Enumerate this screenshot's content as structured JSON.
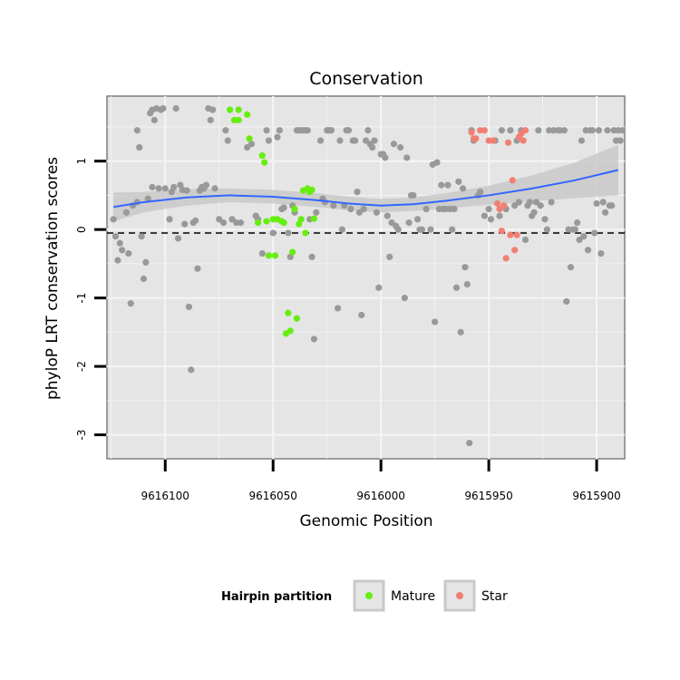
{
  "chart_data": {
    "type": "scatter",
    "title": "Conservation",
    "xlabel": "Genomic Position",
    "ylabel": "phyloP LRT conservation scores",
    "x_reversed": true,
    "xlim": [
      9616127,
      9615887
    ],
    "ylim": [
      -3.35,
      1.95
    ],
    "x_ticks": [
      9616100,
      9616050,
      9616000,
      9615950,
      9615900
    ],
    "y_ticks": [
      -3,
      -2,
      -1,
      0,
      1
    ],
    "grid": true,
    "reference_line": {
      "y": 0,
      "style": "dashed"
    },
    "legend": {
      "title": "Hairpin partition",
      "position": "bottom",
      "entries": [
        {
          "label": "Mature",
          "color": "#66ee11"
        },
        {
          "label": "Star",
          "color": "#f27f73"
        }
      ]
    },
    "colors": {
      "background": "#e5e5e5",
      "grid": "#f5f5f5",
      "other": "#999999",
      "mature": "#66ee11",
      "star": "#f27f73",
      "smooth": "#3366ff",
      "band": "#c9c9c9"
    },
    "smooth": {
      "x": [
        9616124,
        9616110,
        9616090,
        9616070,
        9616050,
        9616030,
        9616015,
        9616000,
        9615985,
        9615970,
        9615950,
        9615930,
        9615910,
        9615890
      ],
      "y": [
        0.33,
        0.4,
        0.47,
        0.5,
        0.48,
        0.43,
        0.38,
        0.35,
        0.37,
        0.42,
        0.5,
        0.6,
        0.72,
        0.87
      ],
      "lower": [
        0.12,
        0.25,
        0.35,
        0.4,
        0.38,
        0.33,
        0.28,
        0.25,
        0.27,
        0.31,
        0.36,
        0.41,
        0.46,
        0.5
      ],
      "upper": [
        0.54,
        0.55,
        0.59,
        0.6,
        0.58,
        0.53,
        0.48,
        0.45,
        0.47,
        0.53,
        0.64,
        0.79,
        0.98,
        1.24
      ]
    },
    "series": [
      {
        "name": "",
        "points": [
          [
            9616124,
            0.15
          ],
          [
            9616123,
            -0.1
          ],
          [
            9616122,
            -0.45
          ],
          [
            9616121,
            -0.2
          ],
          [
            9616120,
            -0.3
          ],
          [
            9616118,
            0.25
          ],
          [
            9616117,
            -0.35
          ],
          [
            9616116,
            -1.08
          ],
          [
            9616115,
            0.35
          ],
          [
            9616113,
            0.4
          ],
          [
            9616113,
            1.45
          ],
          [
            9616112,
            1.2
          ],
          [
            9616111,
            -0.1
          ],
          [
            9616110,
            -0.72
          ],
          [
            9616109,
            -0.48
          ],
          [
            9616108,
            0.45
          ],
          [
            9616107,
            1.7
          ],
          [
            9616106,
            0.62
          ],
          [
            9616106,
            1.75
          ],
          [
            9616105,
            1.6
          ],
          [
            9616104,
            1.77
          ],
          [
            9616103,
            0.6
          ],
          [
            9616102,
            1.75
          ],
          [
            9616101,
            1.77
          ],
          [
            9616100,
            0.6
          ],
          [
            9616098,
            0.15
          ],
          [
            9616097,
            0.55
          ],
          [
            9616096,
            0.62
          ],
          [
            9616095,
            1.77
          ],
          [
            9616094,
            -0.13
          ],
          [
            9616093,
            0.65
          ],
          [
            9616092,
            0.58
          ],
          [
            9616091,
            0.08
          ],
          [
            9616090,
            0.57
          ],
          [
            9616089,
            -1.13
          ],
          [
            9616088,
            -2.05
          ],
          [
            9616087,
            0.1
          ],
          [
            9616086,
            0.13
          ],
          [
            9616085,
            -0.57
          ],
          [
            9616084,
            0.57
          ],
          [
            9616083,
            0.62
          ],
          [
            9616082,
            0.6
          ],
          [
            9616081,
            0.65
          ],
          [
            9616080,
            1.77
          ],
          [
            9616079,
            1.6
          ],
          [
            9616078,
            1.75
          ],
          [
            9616077,
            0.6
          ],
          [
            9616075,
            0.15
          ],
          [
            9616073,
            0.1
          ],
          [
            9616072,
            1.45
          ],
          [
            9616071,
            1.3
          ],
          [
            9616069,
            0.15
          ],
          [
            9616067,
            0.1
          ],
          [
            9616065,
            0.1
          ],
          [
            9616062,
            1.2
          ],
          [
            9616060,
            1.25
          ],
          [
            9616058,
            0.2
          ],
          [
            9616057,
            0.15
          ],
          [
            9616055,
            -0.35
          ],
          [
            9616053,
            1.45
          ],
          [
            9616052,
            1.3
          ],
          [
            9616050,
            -0.05
          ],
          [
            9616048,
            1.35
          ],
          [
            9616047,
            1.45
          ],
          [
            9616046,
            0.3
          ],
          [
            9616045,
            0.32
          ],
          [
            9616043,
            -0.05
          ],
          [
            9616042,
            -0.4
          ],
          [
            9616041,
            0.35
          ],
          [
            9616040,
            0.25
          ],
          [
            9616039,
            1.45
          ],
          [
            9616038,
            1.45
          ],
          [
            9616037,
            1.45
          ],
          [
            9616036,
            1.45
          ],
          [
            9616035,
            1.45
          ],
          [
            9616034,
            1.45
          ],
          [
            9616033,
            0.15
          ],
          [
            9616032,
            -0.4
          ],
          [
            9616031,
            -1.6
          ],
          [
            9616030,
            0.25
          ],
          [
            9616028,
            1.3
          ],
          [
            9616027,
            0.45
          ],
          [
            9616026,
            0.4
          ],
          [
            9616025,
            1.45
          ],
          [
            9616024,
            1.45
          ],
          [
            9616023,
            1.45
          ],
          [
            9616022,
            0.35
          ],
          [
            9616020,
            -1.15
          ],
          [
            9616019,
            1.3
          ],
          [
            9616018,
            0.0
          ],
          [
            9616017,
            0.35
          ],
          [
            9616016,
            1.45
          ],
          [
            9616015,
            1.45
          ],
          [
            9616014,
            0.3
          ],
          [
            9616013,
            1.3
          ],
          [
            9616012,
            1.3
          ],
          [
            9616011,
            0.55
          ],
          [
            9616010,
            0.25
          ],
          [
            9616009,
            -1.25
          ],
          [
            9616008,
            0.3
          ],
          [
            9616007,
            1.3
          ],
          [
            9616006,
            1.45
          ],
          [
            9616005,
            1.25
          ],
          [
            9616004,
            1.2
          ],
          [
            9616003,
            1.3
          ],
          [
            9616002,
            0.25
          ],
          [
            9616001,
            -0.85
          ],
          [
            9616000,
            1.1
          ],
          [
            9615999,
            1.1
          ],
          [
            9615998,
            1.05
          ],
          [
            9615997,
            0.2
          ],
          [
            9615996,
            -0.4
          ],
          [
            9615995,
            0.1
          ],
          [
            9615994,
            1.25
          ],
          [
            9615993,
            0.05
          ],
          [
            9615992,
            0.0
          ],
          [
            9615991,
            1.2
          ],
          [
            9615989,
            -1.0
          ],
          [
            9615988,
            1.05
          ],
          [
            9615987,
            0.1
          ],
          [
            9615986,
            0.5
          ],
          [
            9615985,
            0.5
          ],
          [
            9615983,
            0.15
          ],
          [
            9615982,
            0.0
          ],
          [
            9615981,
            0.0
          ],
          [
            9615979,
            0.3
          ],
          [
            9615977,
            0.0
          ],
          [
            9615976,
            0.95
          ],
          [
            9615975,
            -1.35
          ],
          [
            9615974,
            0.98
          ],
          [
            9615973,
            0.3
          ],
          [
            9615972,
            0.65
          ],
          [
            9615971,
            0.3
          ],
          [
            9615970,
            0.3
          ],
          [
            9615969,
            0.65
          ],
          [
            9615968,
            0.3
          ],
          [
            9615967,
            0.0
          ],
          [
            9615966,
            0.3
          ],
          [
            9615965,
            -0.85
          ],
          [
            9615964,
            0.7
          ],
          [
            9615963,
            -1.5
          ],
          [
            9615962,
            0.6
          ],
          [
            9615961,
            -0.55
          ],
          [
            9615960,
            -0.8
          ],
          [
            9615959,
            -3.12
          ],
          [
            9615958,
            1.45
          ],
          [
            9615957,
            1.3
          ],
          [
            9615955,
            0.5
          ],
          [
            9615954,
            0.55
          ],
          [
            9615952,
            0.2
          ],
          [
            9615950,
            0.3
          ],
          [
            9615949,
            0.15
          ],
          [
            9615947,
            1.3
          ],
          [
            9615945,
            0.2
          ],
          [
            9615944,
            1.45
          ],
          [
            9615942,
            0.3
          ],
          [
            9615940,
            1.45
          ],
          [
            9615938,
            0.35
          ],
          [
            9615937,
            1.3
          ],
          [
            9615936,
            0.4
          ],
          [
            9615935,
            1.45
          ],
          [
            9615933,
            -0.15
          ],
          [
            9615932,
            0.35
          ],
          [
            9615931,
            0.4
          ],
          [
            9615930,
            0.2
          ],
          [
            9615929,
            0.25
          ],
          [
            9615928,
            0.4
          ],
          [
            9615927,
            1.45
          ],
          [
            9615926,
            0.35
          ],
          [
            9615924,
            0.15
          ],
          [
            9615923,
            0.0
          ],
          [
            9615922,
            1.45
          ],
          [
            9615921,
            0.4
          ],
          [
            9615920,
            1.45
          ],
          [
            9615918,
            1.45
          ],
          [
            9615917,
            1.45
          ],
          [
            9615915,
            1.45
          ],
          [
            9615914,
            -1.05
          ],
          [
            9615913,
            0.0
          ],
          [
            9615912,
            -0.55
          ],
          [
            9615911,
            0.0
          ],
          [
            9615910,
            0.0
          ],
          [
            9615909,
            0.1
          ],
          [
            9615908,
            -0.15
          ],
          [
            9615907,
            1.3
          ],
          [
            9615906,
            -0.1
          ],
          [
            9615905,
            1.45
          ],
          [
            9615904,
            -0.3
          ],
          [
            9615903,
            1.45
          ],
          [
            9615902,
            1.45
          ],
          [
            9615901,
            -0.05
          ],
          [
            9615900,
            0.38
          ],
          [
            9615899,
            1.45
          ],
          [
            9615898,
            -0.35
          ],
          [
            9615897,
            0.4
          ],
          [
            9615896,
            0.25
          ],
          [
            9615895,
            1.45
          ],
          [
            9615894,
            0.35
          ],
          [
            9615893,
            0.35
          ],
          [
            9615892,
            1.45
          ],
          [
            9615891,
            1.3
          ],
          [
            9615890,
            1.45
          ],
          [
            9615889,
            1.3
          ],
          [
            9615888,
            1.45
          ]
        ]
      },
      {
        "name": "Mature",
        "points": [
          [
            9616070,
            1.75
          ],
          [
            9616068,
            1.6
          ],
          [
            9616066,
            1.75
          ],
          [
            9616066,
            1.6
          ],
          [
            9616062,
            1.68
          ],
          [
            9616061,
            1.33
          ],
          [
            9616057,
            0.1
          ],
          [
            9616055,
            1.08
          ],
          [
            9616054,
            0.98
          ],
          [
            9616053,
            0.12
          ],
          [
            9616052,
            -0.38
          ],
          [
            9616050,
            0.15
          ],
          [
            9616049,
            -0.38
          ],
          [
            9616048,
            0.15
          ],
          [
            9616046,
            0.12
          ],
          [
            9616045,
            0.1
          ],
          [
            9616044,
            -1.52
          ],
          [
            9616043,
            -1.22
          ],
          [
            9616042,
            -1.48
          ],
          [
            9616041,
            -0.33
          ],
          [
            9616040,
            0.3
          ],
          [
            9616039,
            -1.3
          ],
          [
            9616038,
            0.08
          ],
          [
            9616037,
            0.15
          ],
          [
            9616036,
            0.57
          ],
          [
            9616035,
            -0.05
          ],
          [
            9616034,
            0.6
          ],
          [
            9616033,
            0.55
          ],
          [
            9616032,
            0.58
          ],
          [
            9616031,
            0.16
          ]
        ]
      },
      {
        "name": "Star",
        "points": [
          [
            9615958,
            1.42
          ],
          [
            9615957,
            1.33
          ],
          [
            9615956,
            1.33
          ],
          [
            9615954,
            1.45
          ],
          [
            9615952,
            1.45
          ],
          [
            9615950,
            1.3
          ],
          [
            9615948,
            1.3
          ],
          [
            9615946,
            0.38
          ],
          [
            9615945,
            0.3
          ],
          [
            9615944,
            -0.02
          ],
          [
            9615943,
            0.35
          ],
          [
            9615942,
            -0.42
          ],
          [
            9615941,
            1.27
          ],
          [
            9615940,
            -0.08
          ],
          [
            9615939,
            0.72
          ],
          [
            9615938,
            -0.3
          ],
          [
            9615937,
            -0.08
          ],
          [
            9615936,
            1.35
          ],
          [
            9615935,
            1.4
          ],
          [
            9615934,
            1.3
          ],
          [
            9615933,
            1.45
          ]
        ]
      }
    ]
  }
}
